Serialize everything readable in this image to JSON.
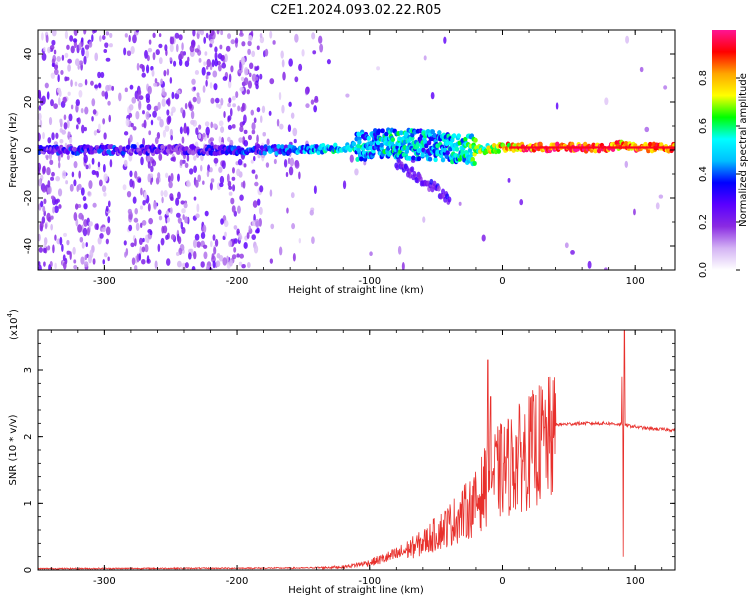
{
  "title": "C2E1.2024.093.02.22.R05",
  "chart_data": [
    {
      "type": "heatmap",
      "xlabel": "Height of straight line (km)",
      "ylabel": "Frequency (Hz)",
      "xlim": [
        -350,
        130
      ],
      "ylim": [
        -50,
        50
      ],
      "x_ticks": [
        -300,
        -200,
        -100,
        0,
        100
      ],
      "x_tick_labels": [
        "-300",
        "-200",
        "-100",
        "0",
        "100"
      ],
      "y_ticks": [
        -40,
        -20,
        0,
        20,
        40
      ],
      "y_tick_labels": [
        "-40",
        "-20",
        "0",
        "20",
        "40"
      ],
      "colorbar": {
        "label": "Normalized spectral amplitude",
        "range": [
          0,
          1
        ],
        "ticks": [
          0.0,
          0.2,
          0.4,
          0.6,
          0.8
        ],
        "tick_labels": [
          "0.0",
          "0.2",
          "0.4",
          "0.6",
          "0.8"
        ],
        "colors": [
          "#ffffff",
          "#d4b3f4",
          "#8a2be2",
          "#5a00ff",
          "#0000ff",
          "#00bfff",
          "#00ffff",
          "#00ff00",
          "#ffff00",
          "#ffa500",
          "#ff0000",
          "#ff1493"
        ]
      },
      "ridge": {
        "x": [
          -340,
          -300,
          -250,
          -200,
          -150,
          -120,
          -100,
          -80,
          -60,
          -40,
          -20,
          0,
          20,
          60,
          80,
          90,
          100,
          130
        ],
        "freq": [
          0,
          0,
          0,
          0,
          0,
          1,
          2,
          3,
          2,
          1,
          0,
          1,
          1,
          1,
          1,
          2,
          1,
          1
        ],
        "amplitude": [
          0.25,
          0.3,
          0.2,
          0.3,
          0.4,
          0.5,
          0.45,
          0.5,
          0.45,
          0.45,
          0.6,
          0.75,
          0.85,
          0.9,
          0.9,
          0.8,
          0.85,
          0.85
        ]
      },
      "grid": false
    },
    {
      "type": "line",
      "ylabel": "SNR (10 * v/v)",
      "xlabel": "Height of straight line (km)",
      "y_scale_label": "(x10",
      "y_scale_exponent": "4",
      "xlim": [
        -350,
        130
      ],
      "ylim": [
        0,
        3.6
      ],
      "x_ticks": [
        -300,
        -200,
        -100,
        0,
        100
      ],
      "x_tick_labels": [
        "-300",
        "-200",
        "-100",
        "0",
        "100"
      ],
      "y_ticks": [
        0,
        1,
        2,
        3
      ],
      "y_tick_labels": [
        "0",
        "1",
        "2",
        "3"
      ],
      "color": "#e8302c",
      "envelope": {
        "x": [
          -350,
          -150,
          -120,
          -100,
          -80,
          -60,
          -40,
          -20,
          -10,
          0,
          20,
          30,
          40,
          60,
          80,
          90,
          100,
          110,
          130
        ],
        "y": [
          0.02,
          0.03,
          0.05,
          0.12,
          0.25,
          0.45,
          0.75,
          1.1,
          1.5,
          1.65,
          1.95,
          2.1,
          2.18,
          2.2,
          2.2,
          2.18,
          2.15,
          2.12,
          2.1
        ]
      },
      "spikes": [
        {
          "x": -11,
          "y": 3.15
        },
        {
          "x": -9,
          "y": 2.6
        },
        {
          "x": 91,
          "y": 0.2
        },
        {
          "x": 92,
          "y": 3.6
        },
        {
          "x": 90,
          "y": 2.9
        }
      ],
      "grid": false
    }
  ]
}
